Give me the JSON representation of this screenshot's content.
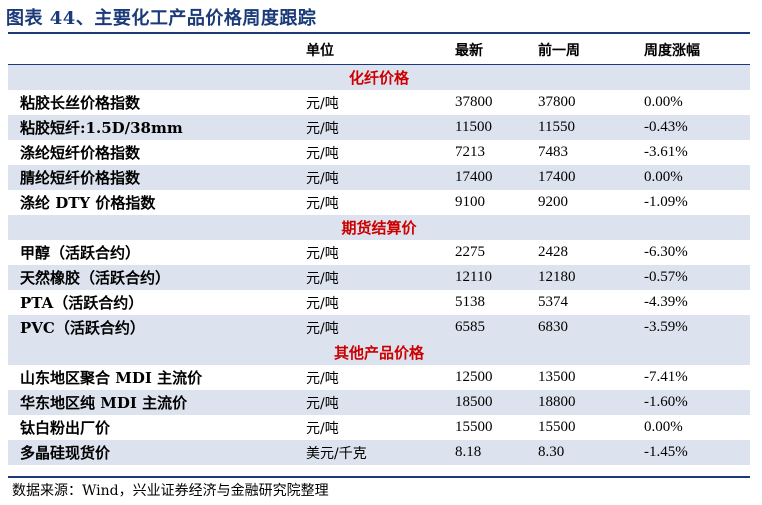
{
  "title": "图表 44、主要化工产品价格周度跟踪",
  "headers": [
    "单位",
    "最新",
    "前一周",
    "周度涨幅"
  ],
  "sections": [
    {
      "label": "化纤价格",
      "rows": [
        [
          "粘胶长丝价格指数",
          "元/吨",
          "37800",
          "37800",
          "0.00%"
        ],
        [
          "粘胶短纤:1.5D/38mm",
          "元/吨",
          "11500",
          "11550",
          "-0.43%"
        ],
        [
          "涤纶短纤价格指数",
          "元/吨",
          "7213",
          "7483",
          "-3.61%"
        ],
        [
          "腈纶短纤价格指数",
          "元/吨",
          "17400",
          "17400",
          "0.00%"
        ],
        [
          "涤纶 DTY 价格指数",
          "元/吨",
          "9100",
          "9200",
          "-1.09%"
        ]
      ]
    },
    {
      "label": "期货结算价",
      "rows": [
        [
          "甲醇（活跃合约）",
          "元/吨",
          "2275",
          "2428",
          "-6.30%"
        ],
        [
          "天然橡胶（活跃合约）",
          "元/吨",
          "12110",
          "12180",
          "-0.57%"
        ],
        [
          "PTA（活跃合约）",
          "元/吨",
          "5138",
          "5374",
          "-4.39%"
        ],
        [
          "PVC（活跃合约）",
          "元/吨",
          "6585",
          "6830",
          "-3.59%"
        ]
      ]
    },
    {
      "label": "其他产品价格",
      "rows": [
        [
          "山东地区聚合 MDI 主流价",
          "元/吨",
          "12500",
          "13500",
          "-7.41%"
        ],
        [
          "华东地区纯 MDI 主流价",
          "元/吨",
          "18500",
          "18800",
          "-1.60%"
        ],
        [
          "钛白粉出厂价",
          "元/吨",
          "15500",
          "15500",
          "0.00%"
        ],
        [
          "多晶硅现货价",
          "美元/千克",
          "8.18",
          "8.30",
          "-1.45%"
        ]
      ]
    }
  ],
  "source": "数据来源：Wind，兴业证券经济与金融研究院整理",
  "colors": {
    "title": "#1b3a7a",
    "section_label": "#cc0000",
    "row_shade": "#dde3ee"
  }
}
